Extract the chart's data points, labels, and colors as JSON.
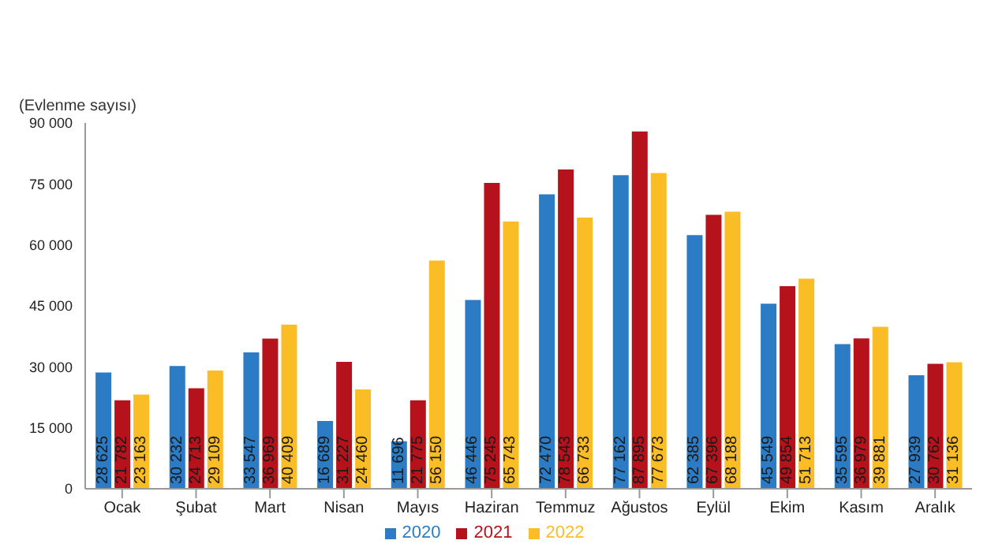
{
  "chart_data": {
    "type": "bar",
    "ylabel": "(Evlenme sayısı)",
    "categories": [
      "Ocak",
      "Şubat",
      "Mart",
      "Nisan",
      "Mayıs",
      "Haziran",
      "Temmuz",
      "Ağustos",
      "Eylül",
      "Ekim",
      "Kasım",
      "Aralık"
    ],
    "series": [
      {
        "name": "2020",
        "color": "#2b7cc4",
        "values": [
          28625,
          30232,
          33547,
          16689,
          11696,
          46446,
          72470,
          77162,
          62385,
          45549,
          35595,
          27939
        ],
        "value_labels": [
          "28 625",
          "30 232",
          "33 547",
          "16 689",
          "11 696",
          "46 446",
          "72 470",
          "77 162",
          "62 385",
          "45 549",
          "35 595",
          "27 939"
        ]
      },
      {
        "name": "2021",
        "color": "#b5121b",
        "values": [
          21782,
          24713,
          36969,
          31227,
          21775,
          75245,
          78543,
          87895,
          67396,
          49854,
          36979,
          30762
        ],
        "value_labels": [
          "21 782",
          "24 713",
          "36 969",
          "31 227",
          "21 775",
          "75 245",
          "78 543",
          "87 895",
          "67 396",
          "49 854",
          "36 979",
          "30 762"
        ]
      },
      {
        "name": "2022",
        "color": "#fbbd26",
        "values": [
          23163,
          29109,
          40409,
          24460,
          56150,
          65743,
          66733,
          77673,
          68188,
          51713,
          39881,
          31136
        ],
        "value_labels": [
          "23 163",
          "29 109",
          "40 409",
          "24 460",
          "56 150",
          "65 743",
          "66 733",
          "77 673",
          "68 188",
          "51 713",
          "39 881",
          "31 136"
        ]
      }
    ],
    "ylim": [
      0,
      90000
    ],
    "yticks": [
      0,
      {
        "value": 15000,
        "label": "15 000"
      },
      {
        "value": 30000,
        "label": "30 000"
      },
      {
        "value": 45000,
        "label": "45 000"
      },
      {
        "value": 60000,
        "label": "60 000"
      },
      {
        "value": 75000,
        "label": "75 000"
      },
      {
        "value": 90000,
        "label": "90 000"
      }
    ],
    "grid": false,
    "legend": "bottom"
  }
}
